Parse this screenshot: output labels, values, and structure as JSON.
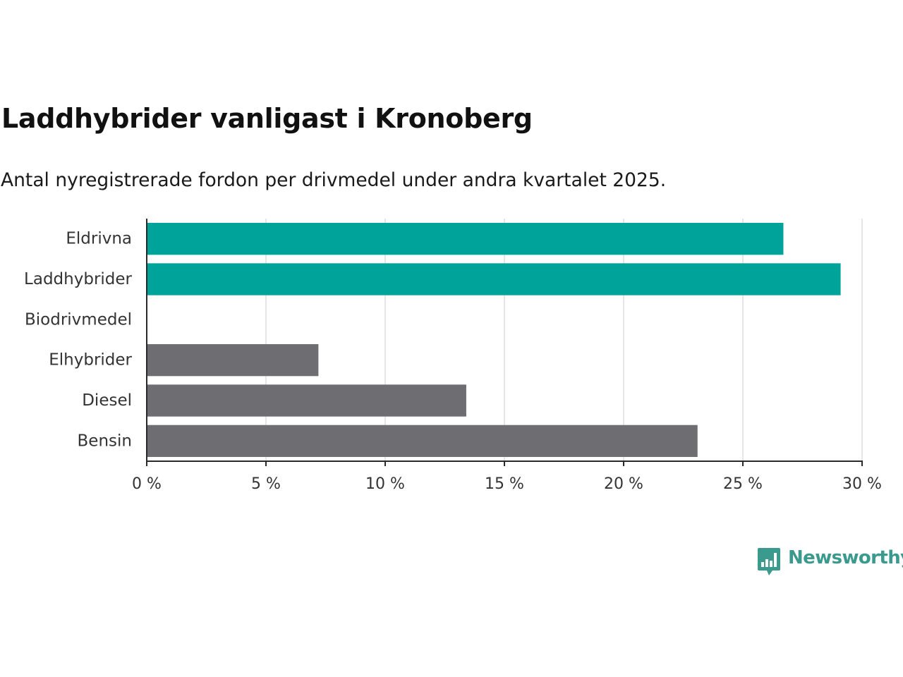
{
  "title": "Laddhybrider vanligast i Kronoberg",
  "subtitle": "Antal nyregistrerade fordon per drivmedel under andra kvartalet 2025.",
  "brand": {
    "name": "Newsworthy",
    "icon": "newsworthy-logo-icon",
    "color": "#3a9a8e"
  },
  "chart_data": {
    "type": "bar",
    "orientation": "horizontal",
    "categories": [
      "Eldrivna",
      "Laddhybrider",
      "Biodrivmedel",
      "Elhybrider",
      "Diesel",
      "Bensin"
    ],
    "values": [
      26.7,
      29.1,
      0,
      7.2,
      13.4,
      23.1
    ],
    "colors": [
      "#00a39a",
      "#00a39a",
      "#00a39a",
      "#6e6d72",
      "#6e6d72",
      "#6e6d72"
    ],
    "xlim": [
      0,
      30
    ],
    "xticks": [
      0,
      5,
      10,
      15,
      20,
      25,
      30
    ],
    "xtick_labels": [
      "0 %",
      "5 %",
      "10 %",
      "15 %",
      "20 %",
      "25 %",
      "30 %"
    ],
    "grid": true,
    "xlabel": "",
    "ylabel": ""
  }
}
